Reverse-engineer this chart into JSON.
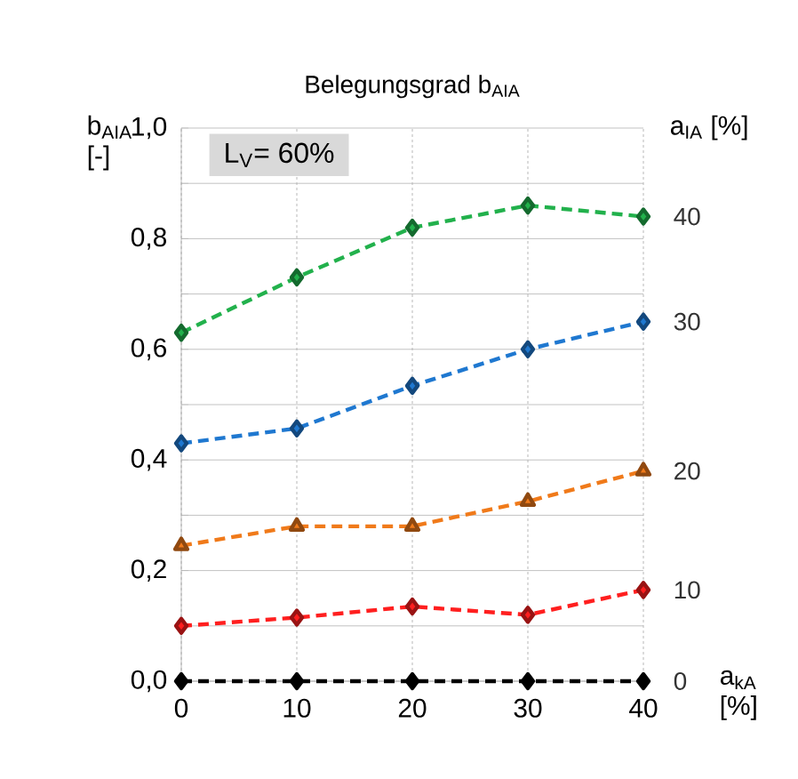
{
  "chart_data": {
    "type": "line",
    "title": "Belegungsgrad b$_{AIA}$",
    "xlabel": "a$_{kA}$ [%]",
    "ylabel": "b$_{AIA}$ [-]",
    "y2label": "a$_{IA}$ [%]",
    "annotations": [
      "L$_{V}$= 60%"
    ],
    "x": [
      0,
      10,
      20,
      30,
      40
    ],
    "series": [
      {
        "name": "0",
        "color": "#000000",
        "marker": "diamond",
        "values": [
          0,
          0,
          0,
          0,
          0
        ]
      },
      {
        "name": "10",
        "color": "#ff1f1f",
        "marker": "diamond",
        "values": [
          0.1,
          0.115,
          0.135,
          0.12,
          0.165
        ]
      },
      {
        "name": "20",
        "color": "#f07a1a",
        "marker": "triangle",
        "values": [
          0.245,
          0.28,
          0.28,
          0.325,
          0.38
        ]
      },
      {
        "name": "30",
        "color": "#1f78d0",
        "marker": "diamond",
        "values": [
          0.43,
          0.457,
          0.534,
          0.6,
          0.65
        ]
      },
      {
        "name": "40",
        "color": "#22b14c",
        "marker": "diamond",
        "values": [
          0.63,
          0.73,
          0.82,
          0.86,
          0.84
        ]
      }
    ],
    "xlim": [
      0,
      40
    ],
    "xticks": [
      0,
      10,
      20,
      30,
      40
    ],
    "ylim": [
      0,
      1
    ],
    "yticks": [
      {
        "value": 0,
        "label": "0,0"
      },
      {
        "value": 0.1,
        "label": null
      },
      {
        "value": 0.2,
        "label": "0,2"
      },
      {
        "value": 0.3,
        "label": null
      },
      {
        "value": 0.4,
        "label": "0,4"
      },
      {
        "value": 0.5,
        "label": null
      },
      {
        "value": 0.6,
        "label": "0,6"
      },
      {
        "value": 0.7,
        "label": null
      },
      {
        "value": 0.8,
        "label": "0,8"
      },
      {
        "value": 0.9,
        "label": null
      },
      {
        "value": 1,
        "label": "1,0"
      }
    ],
    "grid": true,
    "line_style": "dashed"
  }
}
